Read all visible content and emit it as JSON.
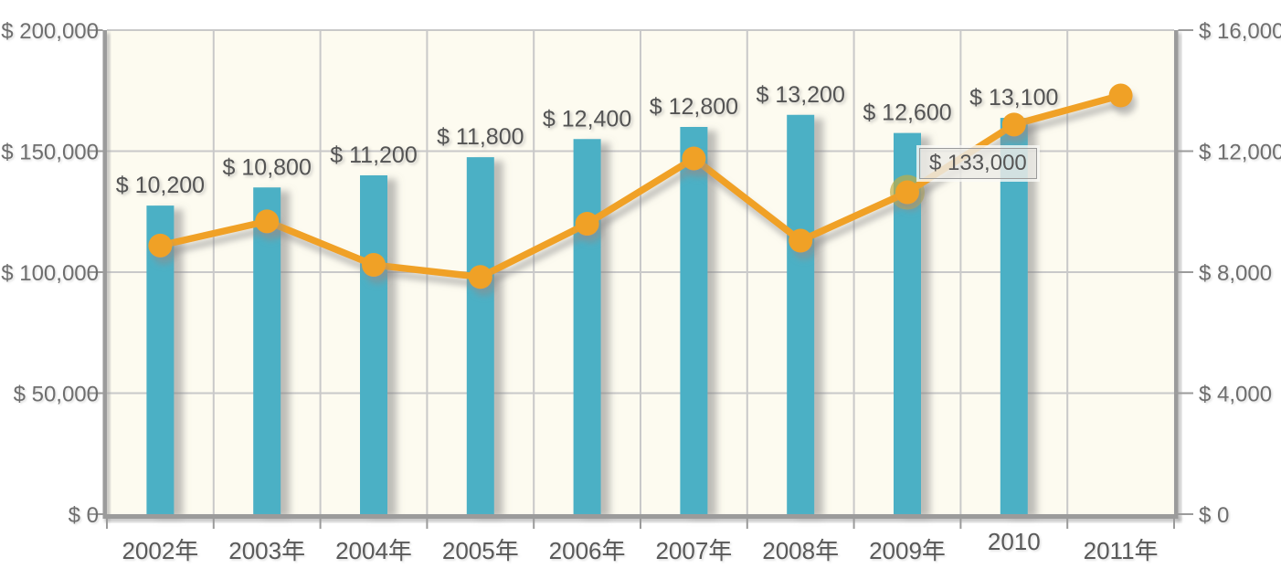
{
  "chart_data": {
    "type": "bar",
    "subtype": "dual-axis bar + line combo, no title, no legend",
    "categories": [
      "2002年",
      "2003年",
      "2004年",
      "2005年",
      "2006年",
      "2007年",
      "2008年",
      "2009年",
      "2010",
      "2011年"
    ],
    "series": [
      {
        "name": "bar-series",
        "type": "bar",
        "axis": "right",
        "values": [
          10200,
          10800,
          11200,
          11800,
          12400,
          12800,
          13200,
          12600,
          13100,
          null
        ],
        "data_labels": [
          "$ 10,200",
          "$ 10,800",
          "$ 11,200",
          "$ 11,800",
          "$ 12,400",
          "$ 12,800",
          "$ 13,200",
          "$ 12,600",
          "$ 13,100",
          null
        ],
        "color": "#4BB0C5"
      },
      {
        "name": "line-series",
        "type": "line",
        "axis": "left",
        "marker": "circle",
        "values": [
          111000,
          121000,
          103000,
          98000,
          120000,
          147000,
          113000,
          133000,
          161000,
          173000
        ],
        "color": "#F0A128"
      }
    ],
    "left_axis": {
      "min": 0,
      "max": 200000,
      "step": 50000,
      "tick_labels": [
        "$ 0",
        "$ 50,000",
        "$ 100,000",
        "$ 150,000",
        "$ 200,000"
      ]
    },
    "right_axis": {
      "min": 0,
      "max": 16000,
      "step": 4000,
      "tick_labels": [
        "$ 0",
        "$ 4,000",
        "$ 8,000",
        "$ 12,000",
        "$ 16,000"
      ]
    },
    "x_axis": {
      "raised_label_index": 8
    },
    "grid": true,
    "legend": "none",
    "tooltip": {
      "label": "$ 133,000",
      "point_index": 7
    },
    "highlight": {
      "point_index": 7
    }
  },
  "colors": {
    "bar": "#4BB0C5",
    "line": "#F0A128",
    "plot_background": "#FDFBF0",
    "page_background": "#FFFFFF",
    "gridline": "#C9C9C9",
    "axis_line": "#9B9B9B",
    "axis_text": "#6E6E6E",
    "label_text": "#545454",
    "halo": "#BFAE45",
    "tooltip_border": "#9A9A9A"
  }
}
